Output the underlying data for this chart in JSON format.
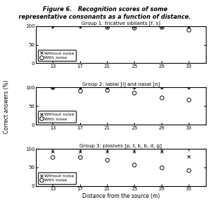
{
  "title_top": "Group 1: fricative sibilants [f, s]",
  "title_mid": "Group 2: labial [l] and nasal [n]",
  "title_bot": "Group 3: plosives [p, t, k, b, d, g]",
  "xlabel": "Distance from the source (m)",
  "ylabel": "Correct answers (%)",
  "x": [
    13,
    17,
    21,
    25,
    29,
    33
  ],
  "group1_without": [
    100,
    100,
    100,
    100,
    100,
    100
  ],
  "group1_with": [
    null,
    null,
    98,
    95,
    98,
    90
  ],
  "group2_without": [
    100,
    100,
    100,
    100,
    100,
    100
  ],
  "group2_with": [
    100,
    92,
    93,
    85,
    73,
    67
  ],
  "group3_without": [
    93,
    93,
    93,
    93,
    93,
    80
  ],
  "group3_with": [
    78,
    78,
    70,
    58,
    50,
    43
  ],
  "legend_without": "Without noise",
  "legend_with": "With noise",
  "ylim": [
    0,
    100
  ],
  "yticks": [
    0,
    50,
    100
  ],
  "xticks": [
    13,
    17,
    21,
    25,
    29,
    33
  ],
  "xlim": [
    10.5,
    35.5
  ]
}
